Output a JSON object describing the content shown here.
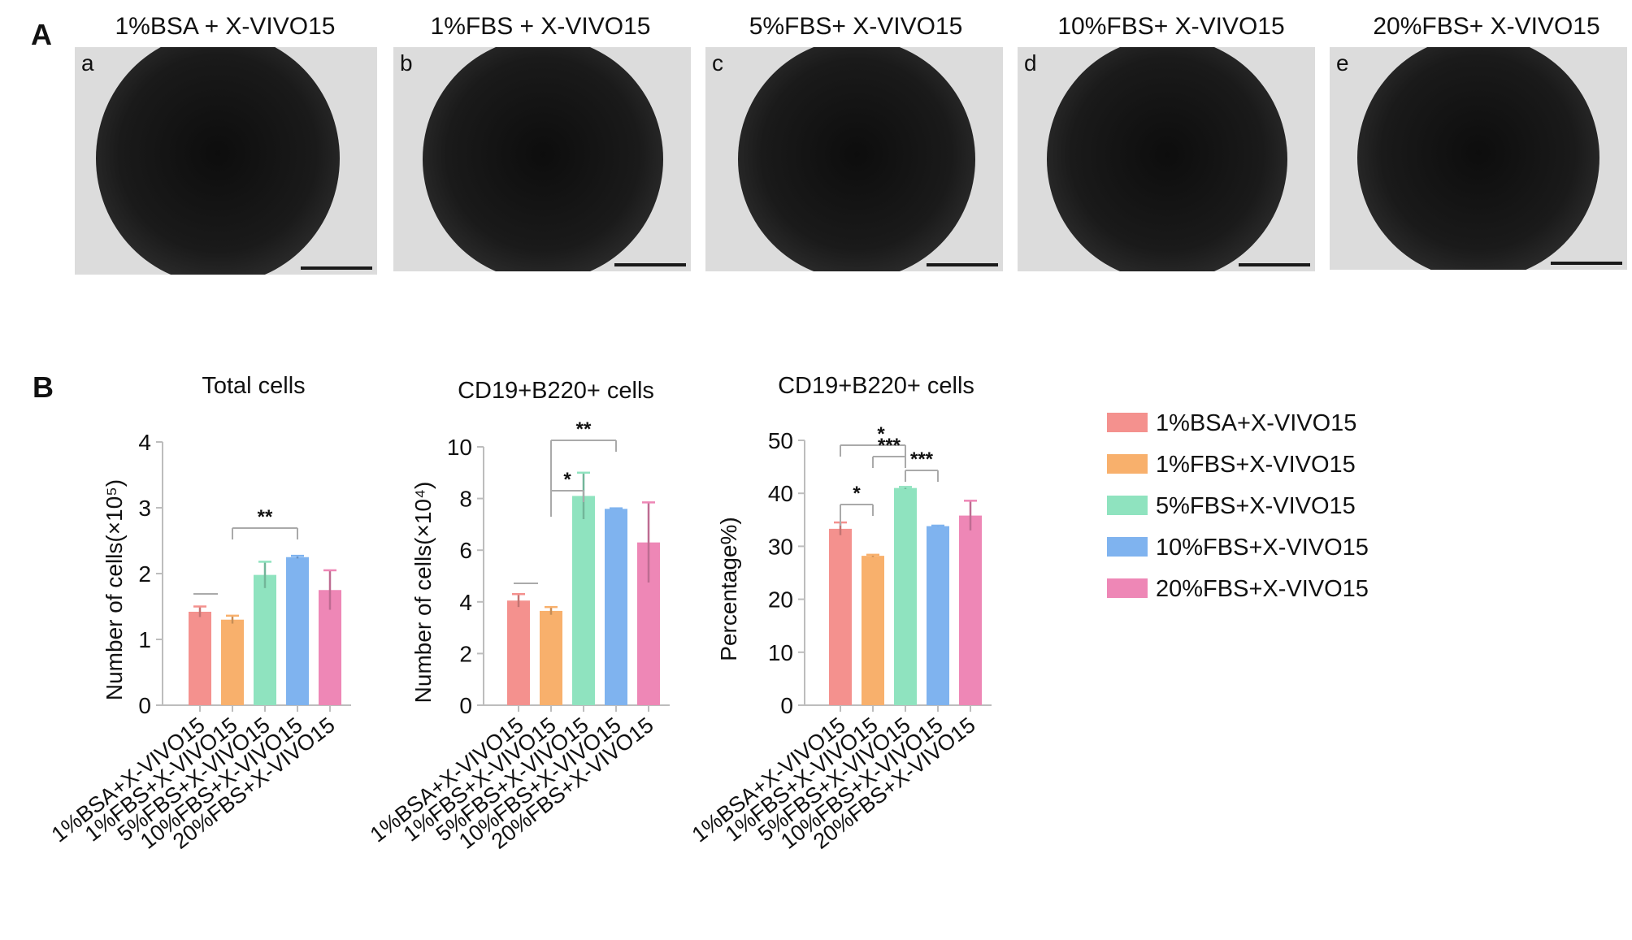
{
  "panel_a": {
    "letter": "A",
    "images": [
      {
        "title": "1%BSA + X-VIVO15",
        "sub": "a"
      },
      {
        "title": "1%FBS + X-VIVO15",
        "sub": "b"
      },
      {
        "title": "5%FBS+ X-VIVO15",
        "sub": "c"
      },
      {
        "title": "10%FBS+ X-VIVO15",
        "sub": "d"
      },
      {
        "title": "20%FBS+ X-VIVO15",
        "sub": "e"
      }
    ]
  },
  "panel_b": {
    "letter": "B"
  },
  "colors": [
    "#f4918e",
    "#f8b06c",
    "#8fe3bf",
    "#7fb3ef",
    "#ee87b6"
  ],
  "legend": [
    "1%BSA+X-VIVO15",
    "1%FBS+X-VIVO15",
    "5%FBS+X-VIVO15",
    "10%FBS+X-VIVO15",
    "20%FBS+X-VIVO15"
  ],
  "chart_data": [
    {
      "type": "bar",
      "title": "Total cells",
      "ylabel": "Number of cells(×10⁵)",
      "ylim": [
        0,
        4
      ],
      "yticks": [
        0,
        1,
        2,
        3,
        4
      ],
      "categories": [
        "1%BSA+X-VIVO15",
        "1%FBS+X-VIVO15",
        "5%FBS+X-VIVO15",
        "10%FBS+X-VIVO15",
        "20%FBS+X-VIVO15"
      ],
      "values": [
        1.42,
        1.3,
        1.98,
        2.25,
        1.75
      ],
      "errors": [
        0.08,
        0.06,
        0.2,
        0.02,
        0.3
      ],
      "significance": [
        {
          "from": 1,
          "to": 3,
          "label": "**"
        }
      ]
    },
    {
      "type": "bar",
      "title": "CD19+B220+ cells",
      "ylabel": "Number of cells(×10⁴)",
      "ylim": [
        0,
        10
      ],
      "yticks": [
        0,
        2,
        4,
        6,
        8,
        10
      ],
      "categories": [
        "1%BSA+X-VIVO15",
        "1%FBS+X-VIVO15",
        "5%FBS+X-VIVO15",
        "10%FBS+X-VIVO15",
        "20%FBS+X-VIVO15"
      ],
      "values": [
        4.05,
        3.65,
        8.1,
        7.6,
        6.3
      ],
      "errors": [
        0.25,
        0.15,
        0.9,
        0.02,
        1.55
      ],
      "significance": [
        {
          "from": 1,
          "to": 2,
          "label": "*"
        },
        {
          "from": 1,
          "to": 3,
          "label": "**"
        }
      ]
    },
    {
      "type": "bar",
      "title": "CD19+B220+ cells",
      "ylabel": "Percentage%)",
      "ylim": [
        0,
        50
      ],
      "yticks": [
        0,
        10,
        20,
        30,
        40,
        50
      ],
      "categories": [
        "1%BSA+X-VIVO15",
        "1%FBS+X-VIVO15",
        "5%FBS+X-VIVO15",
        "10%FBS+X-VIVO15",
        "20%FBS+X-VIVO15"
      ],
      "values": [
        33.3,
        28.2,
        41.0,
        33.8,
        35.8
      ],
      "errors": [
        1.2,
        0.2,
        0.2,
        0.1,
        2.8
      ],
      "significance": [
        {
          "from": 0,
          "to": 1,
          "label": "*"
        },
        {
          "from": 0,
          "to": 2,
          "label": "*"
        },
        {
          "from": 1,
          "to": 2,
          "label": "***"
        },
        {
          "from": 2,
          "to": 3,
          "label": "***"
        }
      ]
    }
  ]
}
